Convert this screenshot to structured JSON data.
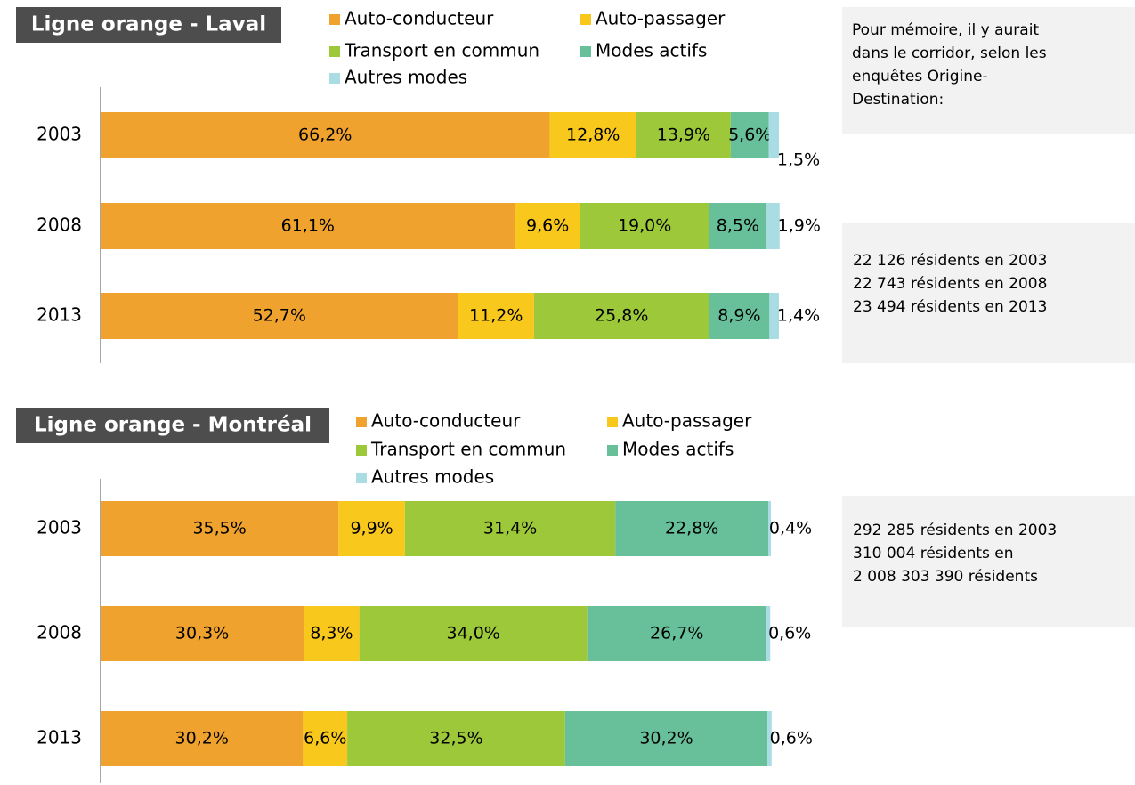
{
  "chart_data": [
    {
      "type": "bar",
      "orientation": "horizontal",
      "stacked": true,
      "title": "Ligne orange - Laval",
      "categories": [
        "2003",
        "2008",
        "2013"
      ],
      "xlim": [
        0,
        100
      ],
      "series": [
        {
          "name": "Auto-conducteur",
          "color": "#f0a22e",
          "values": [
            66.2,
            61.1,
            52.7
          ],
          "value_labels": [
            "66,2%",
            "61,1%",
            "52,7%"
          ]
        },
        {
          "name": "Auto-passager",
          "color": "#f9c81c",
          "values": [
            12.8,
            9.6,
            11.2
          ],
          "value_labels": [
            "12,8%",
            "9,6%",
            "11,2%"
          ]
        },
        {
          "name": "Transport en commun",
          "color": "#9dc83a",
          "values": [
            13.9,
            19.0,
            25.8
          ],
          "value_labels": [
            "13,9%",
            "19,0%",
            "25,8%"
          ]
        },
        {
          "name": "Modes actifs",
          "color": "#67c09a",
          "values": [
            5.6,
            8.5,
            8.9
          ],
          "value_labels": [
            "5,6%",
            "8,5%",
            "8,9%"
          ]
        },
        {
          "name": "Autres modes",
          "color": "#a9dce3",
          "values": [
            1.5,
            1.9,
            1.4
          ],
          "value_labels": [
            "1,5%",
            "1,9%",
            "1,4%"
          ]
        }
      ]
    },
    {
      "type": "bar",
      "orientation": "horizontal",
      "stacked": true,
      "title": "Ligne orange - Montréal",
      "categories": [
        "2003",
        "2008",
        "2013"
      ],
      "xlim": [
        0,
        100
      ],
      "series": [
        {
          "name": "Auto-conducteur",
          "color": "#f0a22e",
          "values": [
            35.5,
            30.3,
            30.2
          ],
          "value_labels": [
            "35,5%",
            "30,3%",
            "30,2%"
          ]
        },
        {
          "name": "Auto-passager",
          "color": "#f9c81c",
          "values": [
            9.9,
            8.3,
            6.6
          ],
          "value_labels": [
            "9,9%",
            "8,3%",
            "6,6%"
          ]
        },
        {
          "name": "Transport en commun",
          "color": "#9dc83a",
          "values": [
            31.4,
            34.0,
            32.5
          ],
          "value_labels": [
            "31,4%",
            "34,0%",
            "32,5%"
          ]
        },
        {
          "name": "Modes actifs",
          "color": "#67c09a",
          "values": [
            22.8,
            26.7,
            30.2
          ],
          "value_labels": [
            "22,8%",
            "26,7%",
            "30,2%"
          ]
        },
        {
          "name": "Autres modes",
          "color": "#a9dce3",
          "values": [
            0.4,
            0.6,
            0.6
          ],
          "value_labels": [
            "0,4%",
            "0,6%",
            "0,6%"
          ]
        }
      ]
    }
  ],
  "notes": {
    "intro": [
      "Pour mémoire, il y aurait",
      "dans le corridor, selon les",
      "enquêtes Origine-",
      "Destination:"
    ],
    "laval": [
      "22 126 résidents en 2003",
      "22 743 résidents en 2008",
      "23 494 résidents en 2013"
    ],
    "montreal": [
      "292 285 résidents en 2003",
      "310 004 résidents en",
      "2 008 303 390 résidents"
    ]
  }
}
